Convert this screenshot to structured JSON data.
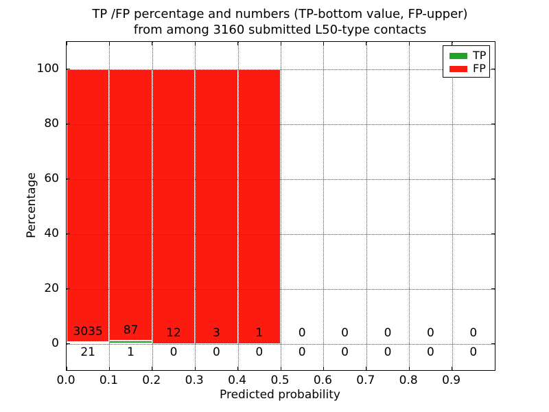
{
  "figure": {
    "title_line1": "TP /FP percentage and numbers (TP-bottom value, FP-upper)",
    "title_line2": "from among 3160 submitted L50-type contacts"
  },
  "chart_data": {
    "type": "bar",
    "stacked": true,
    "title": "TP /FP percentage and numbers (TP-bottom value, FP-upper) from among 3160 submitted L50-type contacts",
    "xlabel": "Predicted probability",
    "ylabel": "Percentage",
    "xlim": [
      0.0,
      1.0
    ],
    "ylim": [
      -10,
      110
    ],
    "grid": true,
    "grid_style": "dotted",
    "legend_position": "upper right",
    "total_submitted": 3160,
    "bin_edges": [
      0.0,
      0.1,
      0.2,
      0.3,
      0.4,
      0.5,
      0.6,
      0.7,
      0.8,
      0.9,
      1.0
    ],
    "x_ticks": [
      0.0,
      0.1,
      0.2,
      0.3,
      0.4,
      0.5,
      0.6,
      0.7,
      0.8,
      0.9
    ],
    "x_tick_labels": [
      "0.0",
      "0.1",
      "0.2",
      "0.3",
      "0.4",
      "0.5",
      "0.6",
      "0.7",
      "0.8",
      "0.9"
    ],
    "y_ticks": [
      0,
      20,
      40,
      60,
      80,
      100
    ],
    "y_tick_labels": [
      "0",
      "20",
      "40",
      "60",
      "80",
      "100"
    ],
    "series": [
      {
        "name": "TP",
        "color": "#21a126",
        "counts": [
          21,
          1,
          0,
          0,
          0,
          0,
          0,
          0,
          0,
          0
        ],
        "percent_of_bin": [
          0.69,
          1.14,
          0,
          0,
          0,
          0,
          0,
          0,
          0,
          0
        ]
      },
      {
        "name": "FP",
        "color": "#fb1b10",
        "counts": [
          3035,
          87,
          12,
          3,
          1,
          0,
          0,
          0,
          0,
          0
        ],
        "percent_of_bin": [
          99.31,
          98.86,
          100,
          100,
          100,
          0,
          0,
          0,
          0,
          0
        ]
      }
    ]
  }
}
